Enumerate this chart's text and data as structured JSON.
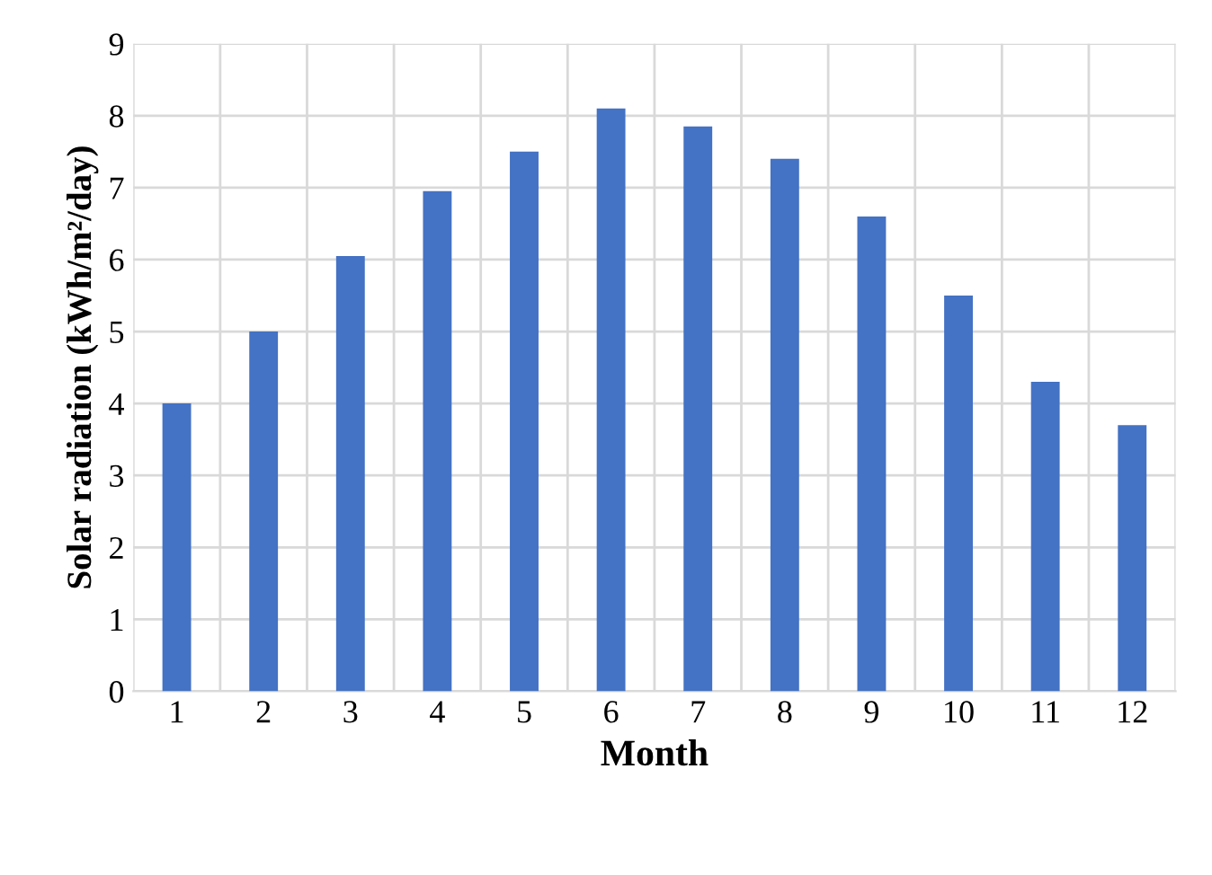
{
  "chart_data": {
    "type": "bar",
    "xlabel": "Month",
    "ylabel": "Solar radiation (kWh/m²/day)",
    "categories": [
      "1",
      "2",
      "3",
      "4",
      "5",
      "6",
      "7",
      "8",
      "9",
      "10",
      "11",
      "12"
    ],
    "values": [
      4.0,
      5.0,
      6.05,
      6.95,
      7.5,
      8.1,
      7.85,
      7.4,
      6.6,
      5.5,
      4.3,
      3.7
    ],
    "color": "#4472c4",
    "ylim": [
      0,
      9
    ],
    "yticks": [
      0,
      1,
      2,
      3,
      4,
      5,
      6,
      7,
      8,
      9
    ],
    "grid": true
  }
}
